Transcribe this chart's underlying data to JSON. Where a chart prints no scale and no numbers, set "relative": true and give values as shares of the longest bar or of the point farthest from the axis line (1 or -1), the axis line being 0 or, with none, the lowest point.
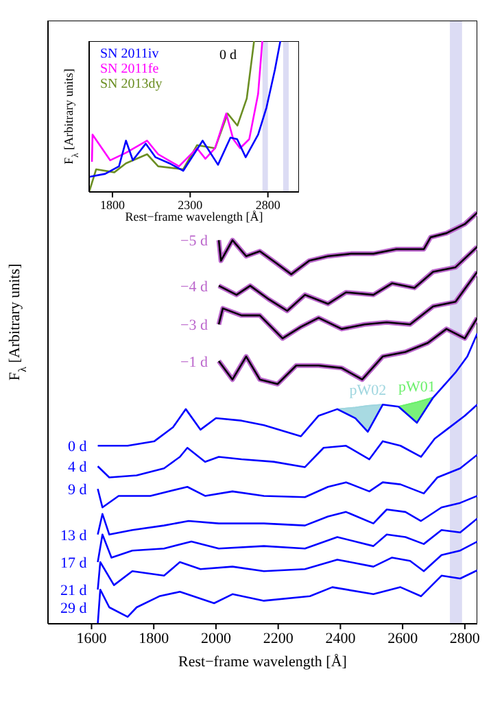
{
  "chart_data": [
    {
      "type": "line",
      "relative": true,
      "xlabel": "Rest−frame wavelength [Å]",
      "ylabel": "F$_{λ}$ [Arbitrary units]",
      "xlim": [
        1460,
        2840
      ],
      "xticks": [
        1600,
        1800,
        2000,
        2200,
        2400,
        2600,
        2800
      ],
      "bands": [
        {
          "axis": "x",
          "from": 2752,
          "to": 2791,
          "color": "#dcdcf4"
        }
      ],
      "series": [
        {
          "name": "pW02",
          "color": "#9fd6df",
          "x": [
            2390,
            2448,
            2488,
            2536
          ],
          "values": [
            0.522,
            0.526,
            0.53,
            0.533
          ],
          "lower": [
            0.522,
            0.5,
            0.467,
            0.533
          ],
          "upper": [
            0.522,
            0.526,
            0.53,
            0.533
          ]
        },
        {
          "name": "pW01",
          "color": "#6cf06c",
          "x": [
            2587,
            2646,
            2698
          ],
          "values": [
            0.528,
            0.539,
            0.55
          ],
          "lower": [
            0.528,
            0.489,
            0.55
          ],
          "upper": [
            0.528,
            0.539,
            0.55
          ]
        },
        {
          "name": "−5 d",
          "color": "#bb66cc",
          "x": [
            2009,
            2016,
            2053,
            2097,
            2141,
            2192,
            2242,
            2300,
            2360,
            2434,
            2506,
            2580,
            2668,
            2690,
            2741,
            2800,
            2840
          ],
          "values": [
            0.933,
            0.883,
            0.933,
            0.894,
            0.906,
            0.878,
            0.85,
            0.883,
            0.894,
            0.9,
            0.9,
            0.911,
            0.911,
            0.94,
            0.95,
            0.972,
            1.0
          ]
        },
        {
          "color": "#000000",
          "x": [
            2009,
            2016,
            2053,
            2097,
            2141,
            2192,
            2242,
            2300,
            2360,
            2434,
            2506,
            2580,
            2668,
            2690,
            2741,
            2800,
            2840
          ],
          "values": [
            0.933,
            0.883,
            0.933,
            0.894,
            0.906,
            0.878,
            0.85,
            0.883,
            0.894,
            0.9,
            0.9,
            0.911,
            0.911,
            0.94,
            0.95,
            0.972,
            1.0
          ]
        },
        {
          "name": "−4 d",
          "color": "#bb66cc",
          "x": [
            2009,
            2066,
            2110,
            2170,
            2229,
            2286,
            2360,
            2418,
            2506,
            2566,
            2638,
            2698,
            2770,
            2840
          ],
          "values": [
            0.822,
            0.8,
            0.822,
            0.789,
            0.761,
            0.8,
            0.778,
            0.806,
            0.8,
            0.828,
            0.817,
            0.856,
            0.867,
            0.917
          ]
        },
        {
          "color": "#000000",
          "x": [
            2009,
            2066,
            2110,
            2170,
            2229,
            2286,
            2360,
            2418,
            2506,
            2566,
            2638,
            2698,
            2770,
            2840
          ],
          "values": [
            0.822,
            0.8,
            0.822,
            0.789,
            0.761,
            0.8,
            0.778,
            0.806,
            0.8,
            0.828,
            0.817,
            0.856,
            0.867,
            0.917
          ]
        },
        {
          "name": "−3 d",
          "color": "#bb66cc",
          "x": [
            2009,
            2022,
            2082,
            2141,
            2214,
            2273,
            2330,
            2404,
            2478,
            2549,
            2624,
            2698,
            2770,
            2840
          ],
          "values": [
            0.728,
            0.767,
            0.75,
            0.75,
            0.694,
            0.722,
            0.744,
            0.717,
            0.728,
            0.733,
            0.728,
            0.772,
            0.783,
            0.856
          ]
        },
        {
          "color": "#000000",
          "x": [
            2009,
            2022,
            2082,
            2141,
            2214,
            2273,
            2330,
            2404,
            2478,
            2549,
            2624,
            2698,
            2770,
            2840
          ],
          "values": [
            0.728,
            0.767,
            0.75,
            0.75,
            0.694,
            0.722,
            0.744,
            0.717,
            0.728,
            0.733,
            0.728,
            0.772,
            0.783,
            0.856
          ]
        },
        {
          "name": "−1 d",
          "color": "#bb66cc",
          "x": [
            2009,
            2053,
            2097,
            2141,
            2198,
            2258,
            2330,
            2404,
            2470,
            2536,
            2609,
            2681,
            2741,
            2800,
            2840
          ],
          "values": [
            0.639,
            0.594,
            0.65,
            0.594,
            0.583,
            0.628,
            0.628,
            0.622,
            0.594,
            0.65,
            0.661,
            0.683,
            0.717,
            0.694,
            0.744
          ]
        },
        {
          "color": "#000000",
          "x": [
            2009,
            2053,
            2097,
            2141,
            2198,
            2258,
            2330,
            2404,
            2470,
            2536,
            2609,
            2681,
            2741,
            2800,
            2840
          ],
          "values": [
            0.639,
            0.594,
            0.65,
            0.594,
            0.583,
            0.628,
            0.628,
            0.622,
            0.594,
            0.65,
            0.661,
            0.683,
            0.717,
            0.694,
            0.744
          ]
        },
        {
          "name": "0 d",
          "color": "#0000ff",
          "x": [
            1620,
            1716,
            1802,
            1862,
            1903,
            1950,
            2000,
            2082,
            2154,
            2273,
            2330,
            2390,
            2448,
            2488,
            2536,
            2587,
            2646,
            2698,
            2770,
            2808,
            2840
          ],
          "values": [
            0.433,
            0.433,
            0.444,
            0.478,
            0.522,
            0.472,
            0.5,
            0.494,
            0.483,
            0.456,
            0.506,
            0.522,
            0.5,
            0.467,
            0.533,
            0.528,
            0.489,
            0.55,
            0.611,
            0.65,
            0.706
          ]
        },
        {
          "name": "4 d",
          "color": "#0000ff",
          "x": [
            1620,
            1657,
            1745,
            1833,
            1884,
            1908,
            1965,
            2009,
            2082,
            2185,
            2286,
            2346,
            2418,
            2493,
            2536,
            2593,
            2659,
            2703,
            2741,
            2800,
            2840
          ],
          "values": [
            0.383,
            0.356,
            0.361,
            0.378,
            0.406,
            0.428,
            0.394,
            0.406,
            0.4,
            0.394,
            0.381,
            0.428,
            0.433,
            0.4,
            0.444,
            0.433,
            0.406,
            0.45,
            0.472,
            0.506,
            0.533
          ]
        },
        {
          "name": "9 d",
          "color": "#0000ff",
          "x": [
            1620,
            1635,
            1687,
            1789,
            1908,
            1965,
            2053,
            2154,
            2286,
            2360,
            2418,
            2493,
            2536,
            2593,
            2668,
            2712,
            2785,
            2840
          ],
          "values": [
            0.328,
            0.283,
            0.311,
            0.311,
            0.333,
            0.311,
            0.322,
            0.311,
            0.308,
            0.333,
            0.344,
            0.322,
            0.344,
            0.339,
            0.317,
            0.356,
            0.378,
            0.411
          ]
        },
        {
          "name": "13 d",
          "color": "#0000ff",
          "x": [
            1620,
            1635,
            1657,
            1731,
            1833,
            1912,
            2009,
            2154,
            2286,
            2360,
            2418,
            2506,
            2549,
            2609,
            2659,
            2725,
            2785,
            2840
          ],
          "values": [
            0.217,
            0.267,
            0.217,
            0.228,
            0.239,
            0.25,
            0.244,
            0.244,
            0.239,
            0.261,
            0.272,
            0.244,
            0.278,
            0.272,
            0.25,
            0.283,
            0.294,
            0.311
          ]
        },
        {
          "name": "17 d",
          "color": "#0000ff",
          "x": [
            1620,
            1635,
            1664,
            1731,
            1833,
            1921,
            2009,
            2154,
            2286,
            2390,
            2506,
            2549,
            2609,
            2668,
            2725,
            2785,
            2840
          ],
          "values": [
            0.15,
            0.217,
            0.161,
            0.178,
            0.183,
            0.2,
            0.183,
            0.189,
            0.183,
            0.211,
            0.189,
            0.217,
            0.211,
            0.194,
            0.228,
            0.222,
            0.256
          ]
        },
        {
          "name": "21 d",
          "color": "#0000ff",
          "x": [
            1620,
            1628,
            1672,
            1731,
            1833,
            1884,
            1950,
            2053,
            2154,
            2286,
            2390,
            2506,
            2566,
            2624,
            2668,
            2725,
            2785,
            2840
          ],
          "values": [
            0.083,
            0.15,
            0.094,
            0.128,
            0.117,
            0.15,
            0.133,
            0.139,
            0.128,
            0.133,
            0.156,
            0.139,
            0.161,
            0.153,
            0.128,
            0.167,
            0.178,
            0.2
          ]
        },
        {
          "name": "29 d",
          "color": "#0000ff",
          "x": [
            1620,
            1628,
            1657,
            1716,
            1745,
            1818,
            1884,
            1994,
            2053,
            2154,
            2302,
            2374,
            2506,
            2593,
            2659,
            2725,
            2785,
            2840
          ],
          "values": [
            0.0,
            0.083,
            0.04,
            0.017,
            0.04,
            0.067,
            0.078,
            0.05,
            0.072,
            0.056,
            0.067,
            0.089,
            0.072,
            0.089,
            0.067,
            0.117,
            0.11,
            0.13
          ]
        }
      ]
    },
    {
      "type": "line",
      "relative": true,
      "xlabel": "Rest−frame wavelength [Å]",
      "ylabel": "F$_{λ}$ [Arbitrary units]",
      "xlim": [
        1650,
        3000
      ],
      "xticks": [
        1800,
        2300,
        2800
      ],
      "legend": "top left",
      "annotations": [
        "0 d"
      ],
      "bands": [
        {
          "axis": "x",
          "from": 2765,
          "to": 2800,
          "color": "#dcdcf4"
        },
        {
          "axis": "x",
          "from": 2898,
          "to": 2934,
          "color": "#dcdcf4"
        }
      ],
      "series": [
        {
          "name": "SN 2011iv",
          "color": "#0000ff",
          "x": [
            1650,
            1753,
            1842,
            1887,
            1931,
            2014,
            2077,
            2166,
            2255,
            2380,
            2479,
            2559,
            2602,
            2657,
            2737,
            2791,
            2845,
            2880
          ],
          "values": [
            0.1,
            0.12,
            0.17,
            0.34,
            0.21,
            0.32,
            0.23,
            0.19,
            0.14,
            0.34,
            0.18,
            0.36,
            0.35,
            0.23,
            0.38,
            0.56,
            0.81,
            1.0
          ]
        },
        {
          "name": "SN 2011fe",
          "color": "#ff00ff",
          "x": [
            1668,
            1672,
            1785,
            1887,
            2023,
            2094,
            2228,
            2344,
            2398,
            2460,
            2532,
            2577,
            2621,
            2680,
            2737,
            2764
          ],
          "values": [
            0.2,
            0.38,
            0.21,
            0.26,
            0.34,
            0.25,
            0.17,
            0.29,
            0.22,
            0.29,
            0.52,
            0.35,
            0.29,
            0.35,
            0.65,
            1.0
          ]
        },
        {
          "name": "SN 2013dy",
          "color": "#6b8e23",
          "x": [
            1650,
            1695,
            1812,
            1887,
            2023,
            2094,
            2255,
            2344,
            2460,
            2541,
            2604,
            2664,
            2711
          ],
          "values": [
            0.0,
            0.15,
            0.13,
            0.19,
            0.25,
            0.17,
            0.15,
            0.31,
            0.29,
            0.52,
            0.44,
            0.62,
            1.0
          ]
        }
      ]
    }
  ]
}
